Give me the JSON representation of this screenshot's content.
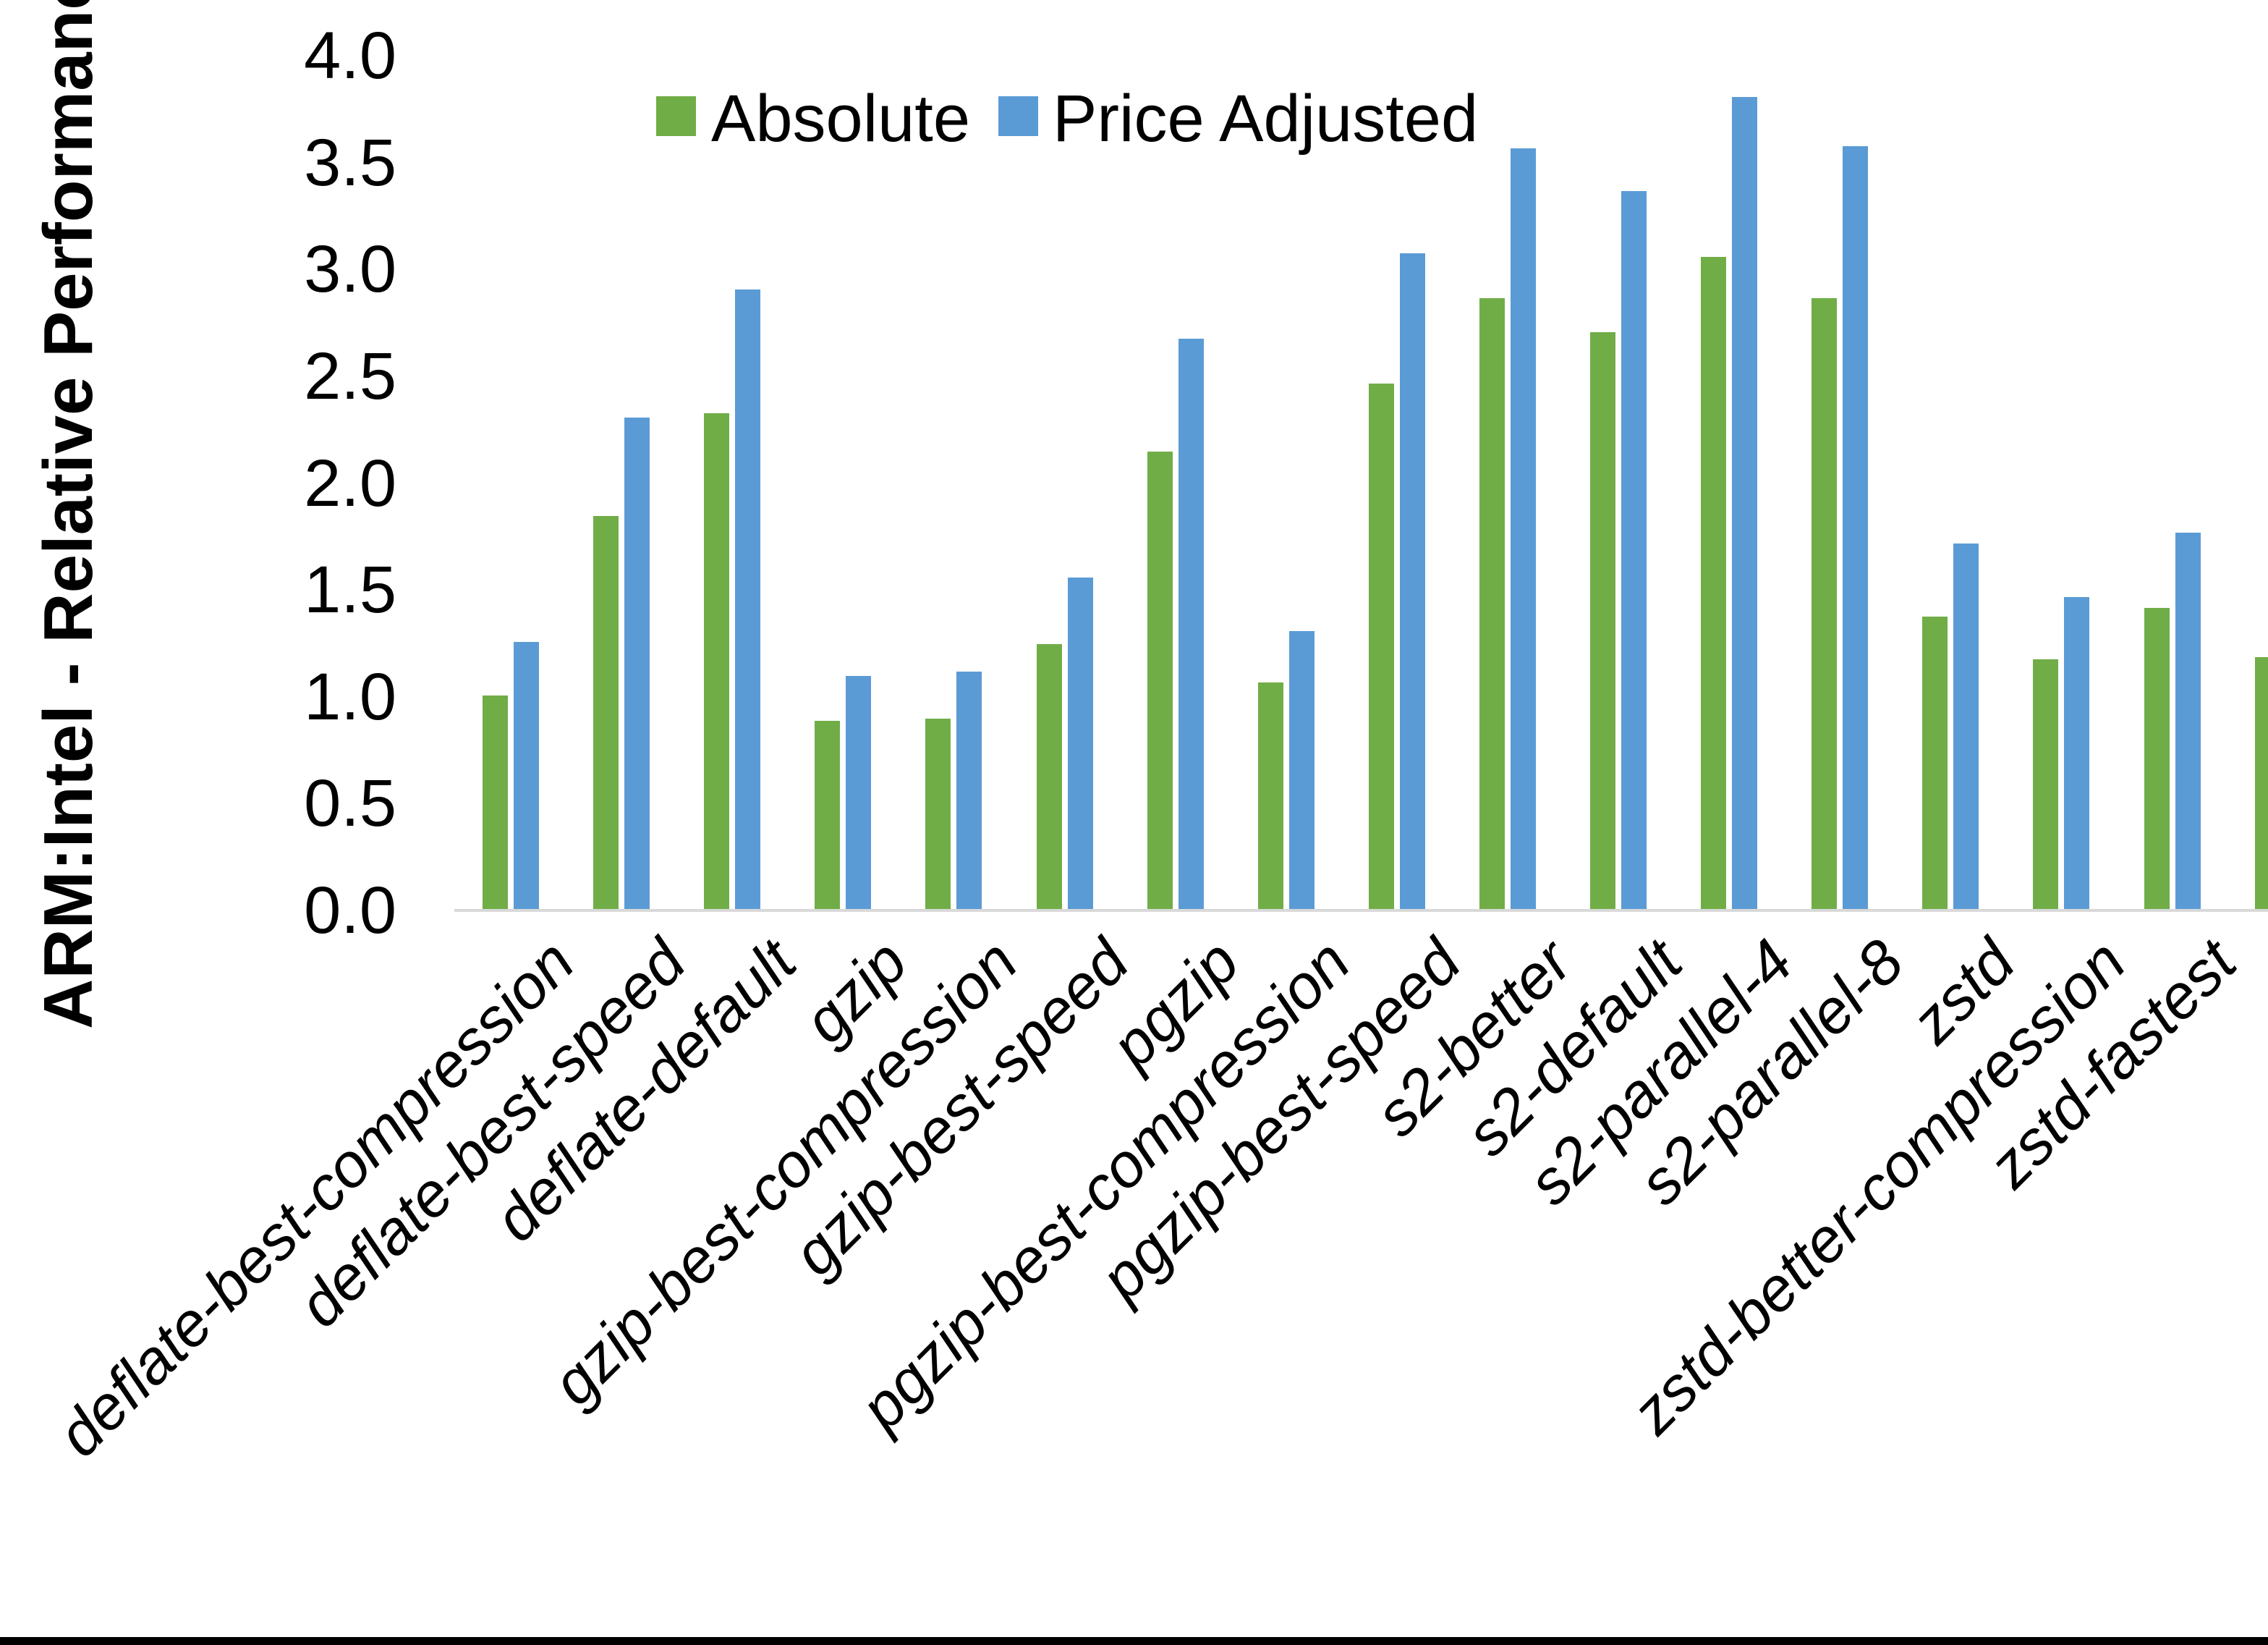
{
  "chart_data": {
    "type": "bar",
    "title": "",
    "xlabel": "",
    "ylabel": "ARM:Intel - Relative Performance",
    "ylim": [
      0.0,
      4.0
    ],
    "ytick_step": 0.5,
    "ytick_labels": [
      "0.0",
      "0.5",
      "1.0",
      "1.5",
      "2.0",
      "2.5",
      "3.0",
      "3.5",
      "4.0"
    ],
    "grid": false,
    "legend_position": "top-center",
    "axis_line_color": "#d9d9d9",
    "categories": [
      "deflate-best-compression",
      "deflate-best-speed",
      "deflate-default",
      "gzip",
      "gzip-best-compression",
      "gzip-best-speed",
      "pgzip",
      "pgzip-best-compression",
      "pgzip-best-speed",
      "s2-better",
      "s2-default",
      "s2-parallel-4",
      "s2-parallel-8",
      "zstd",
      "zstd-better-compression",
      "zstd-fastest"
    ],
    "series": [
      {
        "name": "Absolute",
        "color": "#70AD47",
        "values": [
          1.0,
          1.84,
          2.32,
          0.88,
          0.89,
          1.24,
          2.14,
          1.06,
          2.46,
          2.86,
          2.7,
          3.05,
          2.86,
          1.37,
          1.17,
          1.41
        ]
      },
      {
        "name": "Price Adjusted",
        "color": "#5B9BD5",
        "values": [
          1.25,
          2.3,
          2.9,
          1.09,
          1.11,
          1.55,
          2.67,
          1.3,
          3.07,
          3.56,
          3.36,
          3.8,
          3.57,
          1.71,
          1.46,
          1.76
        ]
      }
    ],
    "clipped_extra_bar": {
      "series": "Absolute",
      "value": 1.18,
      "note": "green bar cut off at right image edge, no visible label"
    }
  }
}
